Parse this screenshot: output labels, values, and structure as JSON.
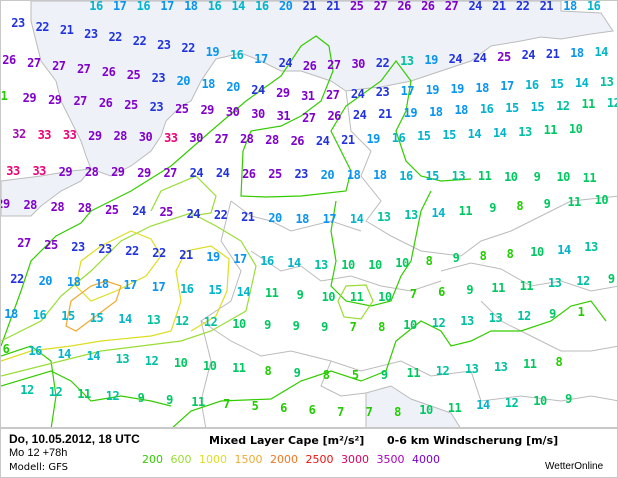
{
  "footer": {
    "date": "Do, 10.05.2012, 18 UTC",
    "run": "Mo 12 +78h",
    "model": "Modell: GFS",
    "cape_title": "Mixed Layer Cape [m²/s²]",
    "shear_title": "0-6 km Windscherung [m/s]",
    "brand": "WetterOnline",
    "legend": [
      {
        "value": "200",
        "color": "#33cc00"
      },
      {
        "value": "600",
        "color": "#99dd33"
      },
      {
        "value": "1000",
        "color": "#dddd22"
      },
      {
        "value": "1500",
        "color": "#eeaa33"
      },
      {
        "value": "2000",
        "color": "#ee7722"
      },
      {
        "value": "2500",
        "color": "#ee1111"
      },
      {
        "value": "3000",
        "color": "#dd0066"
      },
      {
        "value": "3500",
        "color": "#aa00bb"
      },
      {
        "value": "4000",
        "color": "#7700cc"
      }
    ]
  },
  "map": {
    "sea_color": "#eef2f8",
    "border_color": "#bbbbbb",
    "shear_values": [
      [
        16,
        17,
        16,
        17,
        18,
        16,
        14,
        16,
        20,
        21,
        21,
        25,
        27,
        26,
        26,
        27,
        24,
        21,
        22,
        21,
        18,
        16
      ],
      [
        23,
        22,
        21,
        23,
        22,
        22,
        23,
        22,
        19,
        16,
        17,
        24,
        26,
        27,
        30,
        22,
        13,
        19,
        24,
        24,
        25,
        24,
        21,
        18,
        14
      ],
      [
        26,
        27,
        27,
        27,
        26,
        25,
        23,
        20,
        18,
        20,
        24,
        29,
        31,
        27,
        24,
        23,
        17,
        19,
        19,
        18,
        17,
        16,
        15,
        14,
        13
      ],
      [
        1,
        29,
        29,
        27,
        26,
        25,
        23,
        25,
        29,
        30,
        30,
        31,
        27,
        26,
        24,
        21,
        19,
        18,
        18,
        16,
        15,
        15,
        12,
        11,
        12
      ],
      [
        32,
        33,
        33,
        29,
        28,
        30,
        33,
        30,
        27,
        28,
        28,
        26,
        24,
        21,
        19,
        16,
        15,
        15,
        14,
        14,
        13,
        11,
        10
      ],
      [
        33,
        33,
        29,
        28,
        29,
        29,
        27,
        24,
        24,
        26,
        25,
        23,
        20,
        18,
        18,
        16,
        15,
        13,
        11,
        10,
        9,
        10,
        11
      ],
      [
        29,
        28,
        28,
        28,
        25,
        24,
        25,
        24,
        22,
        21,
        20,
        18,
        17,
        14,
        13,
        13,
        14,
        11,
        9,
        8,
        9,
        11,
        10
      ],
      [
        27,
        25,
        23,
        23,
        22,
        22,
        21,
        19,
        17,
        16,
        14,
        13,
        10,
        10,
        10,
        8,
        9,
        8,
        8,
        10,
        14,
        13
      ],
      [
        22,
        20,
        18,
        18,
        17,
        17,
        16,
        15,
        14,
        11,
        9,
        10,
        11,
        10,
        7,
        6,
        9,
        11,
        11,
        13,
        12,
        9
      ],
      [
        18,
        16,
        15,
        15,
        14,
        13,
        12,
        12,
        10,
        9,
        9,
        9,
        7,
        8,
        10,
        12,
        13,
        13,
        12,
        9,
        1
      ],
      [
        6,
        16,
        14,
        14,
        13,
        12,
        10,
        10,
        11,
        8,
        9,
        8,
        5,
        9,
        11,
        12,
        13,
        13,
        11,
        8
      ],
      [
        12,
        12,
        11,
        12,
        9,
        9,
        11,
        7,
        5,
        6,
        6,
        7,
        7,
        8,
        10,
        11,
        14,
        12,
        10,
        9
      ]
    ]
  }
}
